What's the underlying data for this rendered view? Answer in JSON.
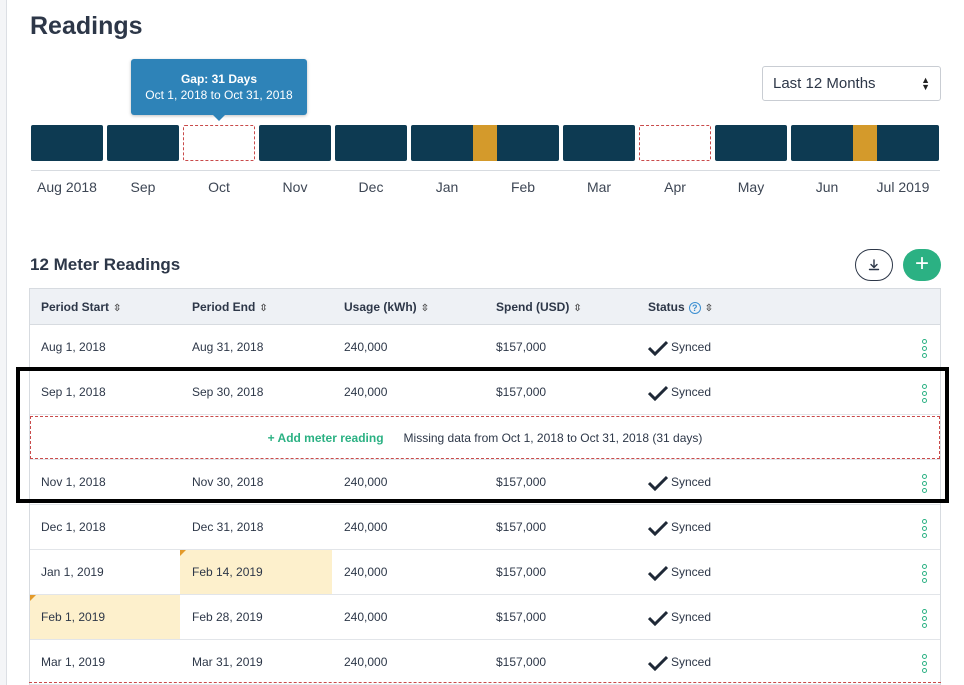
{
  "page": {
    "title": "Readings"
  },
  "filter": {
    "selected": "Last 12 Months"
  },
  "tooltip": {
    "title": "Gap: 31 Days",
    "range": "Oct 1, 2018 to Oct 31, 2018"
  },
  "timeline": {
    "months": [
      "Aug 2018",
      "Sep",
      "Oct",
      "Nov",
      "Dec",
      "Jan",
      "Feb",
      "Mar",
      "Apr",
      "May",
      "Jun",
      "Jul 2019"
    ],
    "gap_months": [
      "Oct",
      "Apr"
    ],
    "overlap_markers": [
      "Jan/Feb",
      "Jun/Jul"
    ]
  },
  "readings": {
    "title": "12 Meter Readings",
    "columns": {
      "period_start": "Period Start",
      "period_end": "Period End",
      "usage": "Usage (kWh)",
      "spend": "Spend (USD)",
      "status": "Status"
    },
    "rows": [
      {
        "start": "Aug 1, 2018",
        "end": "Aug 31, 2018",
        "usage": "240,000",
        "spend": "$157,000",
        "status": "Synced"
      },
      {
        "start": "Sep 1, 2018",
        "end": "Sep 30, 2018",
        "usage": "240,000",
        "spend": "$157,000",
        "status": "Synced"
      },
      {
        "start": "Nov 1, 2018",
        "end": "Nov 30, 2018",
        "usage": "240,000",
        "spend": "$157,000",
        "status": "Synced"
      },
      {
        "start": "Dec 1, 2018",
        "end": "Dec 31, 2018",
        "usage": "240,000",
        "spend": "$157,000",
        "status": "Synced"
      },
      {
        "start": "Jan 1, 2019",
        "end": "Feb 14, 2019",
        "usage": "240,000",
        "spend": "$157,000",
        "status": "Synced"
      },
      {
        "start": "Feb 1, 2019",
        "end": "Feb 28, 2019",
        "usage": "240,000",
        "spend": "$157,000",
        "status": "Synced"
      },
      {
        "start": "Mar 1, 2019",
        "end": "Mar 31, 2019",
        "usage": "240,000",
        "spend": "$157,000",
        "status": "Synced"
      }
    ],
    "gap_row": {
      "add_label": "+ Add meter reading",
      "message": "Missing data from Oct 1, 2018 to Oct 31, 2018 (31 days)"
    }
  },
  "colors": {
    "segment": "#0d3a52",
    "overlap": "#d49a2b",
    "gap_border": "#c94a4a",
    "accent": "#2bb183",
    "tooltip": "#2e83b8",
    "highlight": "#fdf0cc"
  }
}
